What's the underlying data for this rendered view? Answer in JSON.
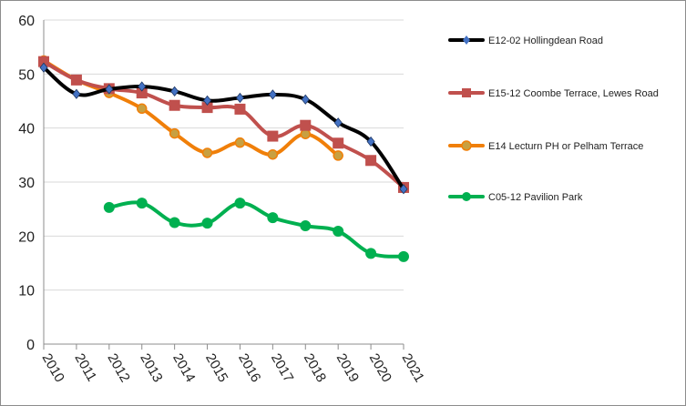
{
  "chart_data": {
    "type": "line",
    "title": "",
    "xlabel": "",
    "ylabel": "",
    "x": [
      "2010",
      "2011",
      "2012",
      "2013",
      "2014",
      "2015",
      "2016",
      "2017",
      "2018",
      "2019",
      "2020",
      "2021"
    ],
    "ylim": [
      0,
      60
    ],
    "yticks": [
      "0",
      "10",
      "20",
      "30",
      "40",
      "50",
      "60"
    ],
    "grid": "horizontal",
    "legend_position": "right",
    "series": [
      {
        "name": "E12-02 Hollingdean Road",
        "color": "#000000",
        "marker_color": "#4472c4",
        "marker": "diamond",
        "values": [
          51.2,
          46.3,
          47.2,
          47.7,
          46.8,
          45.1,
          45.6,
          46.2,
          45.3,
          41.0,
          37.5,
          28.7
        ]
      },
      {
        "name": "E15-12 Coombe Terrace, Lewes Road",
        "color": "#c0504d",
        "marker_color": "#c0504d",
        "marker": "square",
        "values": [
          52.3,
          48.9,
          47.3,
          46.5,
          44.2,
          43.8,
          43.5,
          38.5,
          40.5,
          37.2,
          34.0,
          29.0
        ]
      },
      {
        "name": "E14 Lecturn PH or Pelham Terrace",
        "color": "#f07f09",
        "marker_color": "#c8a041",
        "marker": "circle",
        "values": [
          52.5,
          48.9,
          46.5,
          43.6,
          39.0,
          35.4,
          37.3,
          35.1,
          38.9,
          34.9,
          null,
          null
        ]
      },
      {
        "name": "C05-12 Pavilion Park",
        "color": "#00b050",
        "marker_color": "#00b050",
        "marker": "circle",
        "values": [
          null,
          null,
          25.3,
          26.1,
          22.5,
          22.4,
          26.1,
          23.4,
          21.9,
          20.9,
          16.8,
          16.2
        ]
      }
    ]
  }
}
